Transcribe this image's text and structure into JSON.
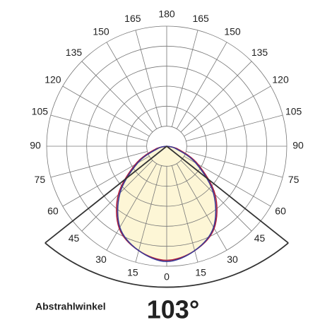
{
  "chart_data": {
    "type": "polar",
    "theta_ticks": [
      0,
      15,
      30,
      45,
      60,
      75,
      90,
      105,
      120,
      135,
      150,
      165,
      180
    ],
    "rlim": [
      0,
      1
    ],
    "theta": [
      -90,
      -75,
      -60,
      -45,
      -30,
      -15,
      0,
      15,
      30,
      45,
      60,
      75,
      90
    ],
    "series": [
      {
        "color": "#b01e3c",
        "fill": "#fdf6d6",
        "values": [
          0,
          0.1,
          0.3,
          0.57,
          0.79,
          0.9,
          0.95,
          0.9,
          0.79,
          0.57,
          0.3,
          0.1,
          0
        ]
      },
      {
        "color": "#3b3b96",
        "values": [
          0,
          0.08,
          0.28,
          0.55,
          0.78,
          0.9,
          0.96,
          0.9,
          0.78,
          0.55,
          0.28,
          0.08,
          0
        ]
      }
    ],
    "beam_label": "Abstrahlwinkel",
    "beam_angle": {
      "value": 103,
      "label": "103°"
    }
  }
}
